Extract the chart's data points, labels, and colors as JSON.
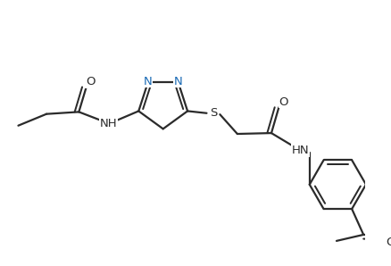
{
  "bg_color": "#ffffff",
  "line_color": "#2b2b2b",
  "n_color": "#1a6ab5",
  "bond_lw": 1.6,
  "font_size": 9.5,
  "fig_width": 4.38,
  "fig_height": 2.98,
  "dpi": 100,
  "xlim": [
    0,
    8.76
  ],
  "ylim": [
    0,
    5.96
  ]
}
